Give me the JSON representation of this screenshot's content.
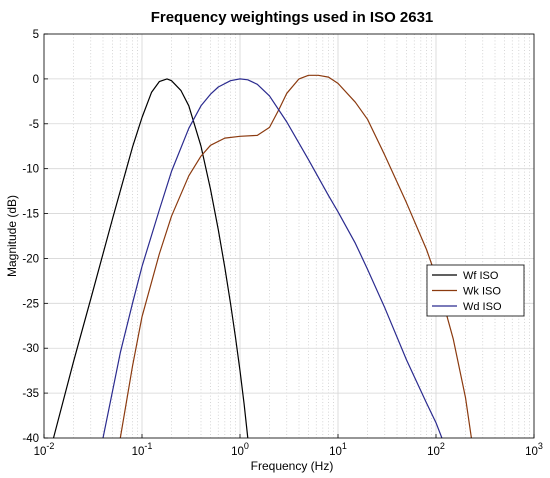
{
  "chart_data": {
    "type": "line",
    "title": "Frequency weightings used in ISO 2631",
    "xlabel": "Frequency  (Hz)",
    "ylabel": "Magnitude (dB)",
    "x_scale": "log",
    "xlim": [
      0.01,
      1000
    ],
    "ylim": [
      -40,
      5
    ],
    "x_ticks": [
      {
        "value": 0.01,
        "base": "10",
        "exp": "-2"
      },
      {
        "value": 0.1,
        "base": "10",
        "exp": "-1"
      },
      {
        "value": 1,
        "base": "10",
        "exp": "0"
      },
      {
        "value": 10,
        "base": "10",
        "exp": "1"
      },
      {
        "value": 100,
        "base": "10",
        "exp": "2"
      },
      {
        "value": 1000,
        "base": "10",
        "exp": "3"
      }
    ],
    "y_ticks": [
      "5",
      "0",
      "-5",
      "-10",
      "-15",
      "-20",
      "-25",
      "-30",
      "-35",
      "-40"
    ],
    "y_tick_values": [
      5,
      0,
      -5,
      -10,
      -15,
      -20,
      -25,
      -30,
      -35,
      -40
    ],
    "grid": true,
    "legend_position": "right",
    "series": [
      {
        "name": "Wf ISO",
        "color": "#000000",
        "x": [
          0.0125,
          0.02,
          0.03,
          0.05,
          0.08,
          0.1,
          0.125,
          0.15,
          0.18,
          0.2,
          0.25,
          0.3,
          0.4,
          0.5,
          0.6,
          0.7,
          0.8,
          0.9,
          1.0,
          1.1,
          1.2
        ],
        "y": [
          -40,
          -31.5,
          -24.5,
          -15.6,
          -7.6,
          -4.3,
          -1.5,
          -0.3,
          0,
          -0.2,
          -1.3,
          -3.0,
          -7.5,
          -12.3,
          -16.8,
          -21.0,
          -25.0,
          -28.8,
          -32.5,
          -36.2,
          -40
        ]
      },
      {
        "name": "Wk ISO",
        "color": "#8b3a0f",
        "x": [
          0.06,
          0.08,
          0.1,
          0.15,
          0.2,
          0.3,
          0.4,
          0.5,
          0.7,
          1.0,
          1.5,
          2.0,
          2.5,
          3.0,
          4.0,
          5.0,
          6.3,
          8.0,
          10,
          15,
          20,
          30,
          50,
          80,
          100,
          150,
          200,
          230
        ],
        "y": [
          -40,
          -32,
          -26.5,
          -19.5,
          -15.3,
          -10.8,
          -8.6,
          -7.4,
          -6.6,
          -6.4,
          -6.3,
          -5.4,
          -3.4,
          -1.6,
          0,
          0.4,
          0.4,
          0.2,
          -0.5,
          -2.6,
          -4.5,
          -8.5,
          -13.8,
          -19.0,
          -22.0,
          -29.0,
          -35.5,
          -40
        ]
      },
      {
        "name": "Wd ISO",
        "color": "#2b2b8f",
        "x": [
          0.04,
          0.05,
          0.06,
          0.08,
          0.1,
          0.15,
          0.2,
          0.3,
          0.4,
          0.5,
          0.6,
          0.8,
          1.0,
          1.2,
          1.5,
          2.0,
          3.0,
          5.0,
          8.0,
          10,
          15,
          20,
          30,
          50,
          80,
          100,
          115
        ],
        "y": [
          -40,
          -34.8,
          -30.5,
          -25.0,
          -20.9,
          -14.6,
          -10.3,
          -5.5,
          -3.0,
          -1.7,
          -0.9,
          -0.2,
          0,
          -0.1,
          -0.6,
          -1.9,
          -4.8,
          -9.0,
          -13.0,
          -14.8,
          -18.3,
          -21.2,
          -25.5,
          -31.3,
          -36.1,
          -38.3,
          -40
        ]
      }
    ]
  }
}
